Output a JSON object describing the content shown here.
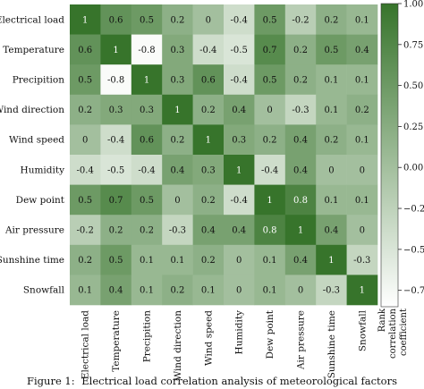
{
  "chart_data": {
    "type": "heatmap",
    "title": "",
    "labels": [
      "Electrical load",
      "Temperature",
      "Precipition",
      "Wind direction",
      "Wind speed",
      "Humidity",
      "Dew point",
      "Air pressure",
      "Sunshine time",
      "Snowfall"
    ],
    "values": [
      [
        1,
        0.6,
        0.5,
        0.2,
        0,
        -0.4,
        0.5,
        -0.2,
        0.2,
        0.1
      ],
      [
        0.6,
        1,
        -0.8,
        0.3,
        -0.4,
        -0.5,
        0.7,
        0.2,
        0.5,
        0.4
      ],
      [
        0.5,
        -0.8,
        1,
        0.3,
        0.6,
        -0.4,
        0.5,
        0.2,
        0.1,
        0.1
      ],
      [
        0.2,
        0.3,
        0.3,
        1,
        0.2,
        0.4,
        0,
        -0.3,
        0.1,
        0.2
      ],
      [
        0,
        -0.4,
        0.6,
        0.2,
        1,
        0.3,
        0.2,
        0.4,
        0.2,
        0.1
      ],
      [
        -0.4,
        -0.5,
        -0.4,
        0.4,
        0.3,
        1,
        -0.4,
        0.4,
        0,
        0
      ],
      [
        0.5,
        0.7,
        0.5,
        0,
        0.2,
        -0.4,
        1,
        0.8,
        0.1,
        0.1
      ],
      [
        -0.2,
        0.2,
        0.2,
        -0.3,
        0.4,
        0.4,
        0.8,
        1,
        0.4,
        0
      ],
      [
        0.2,
        0.5,
        0.1,
        0.1,
        0.2,
        0,
        0.1,
        0.4,
        1,
        -0.3
      ],
      [
        0.1,
        0.4,
        0.1,
        0.2,
        0.1,
        0,
        0.1,
        0,
        -0.3,
        1
      ]
    ],
    "colorbar": {
      "label_lines": [
        "Rank",
        "correlation",
        "coefficient"
      ],
      "ticks": [
        1.0,
        0.75,
        0.5,
        0.25,
        0.0,
        -0.25,
        -0.5,
        -0.75
      ],
      "tick_labels": [
        "1.00",
        "0.75",
        "0.50",
        "0.25",
        "0.00",
        "−0.25",
        "−0.50",
        "−0.75"
      ],
      "range": [
        -0.85,
        1.0
      ]
    },
    "colors": {
      "low": "#ffffff",
      "high": "#37742b",
      "text_dark": "#111111",
      "text_light": "#ffffff"
    }
  },
  "caption": {
    "prefix": "Figure 1:",
    "text": "Electrical load correlation analysis of meteorological factors"
  }
}
